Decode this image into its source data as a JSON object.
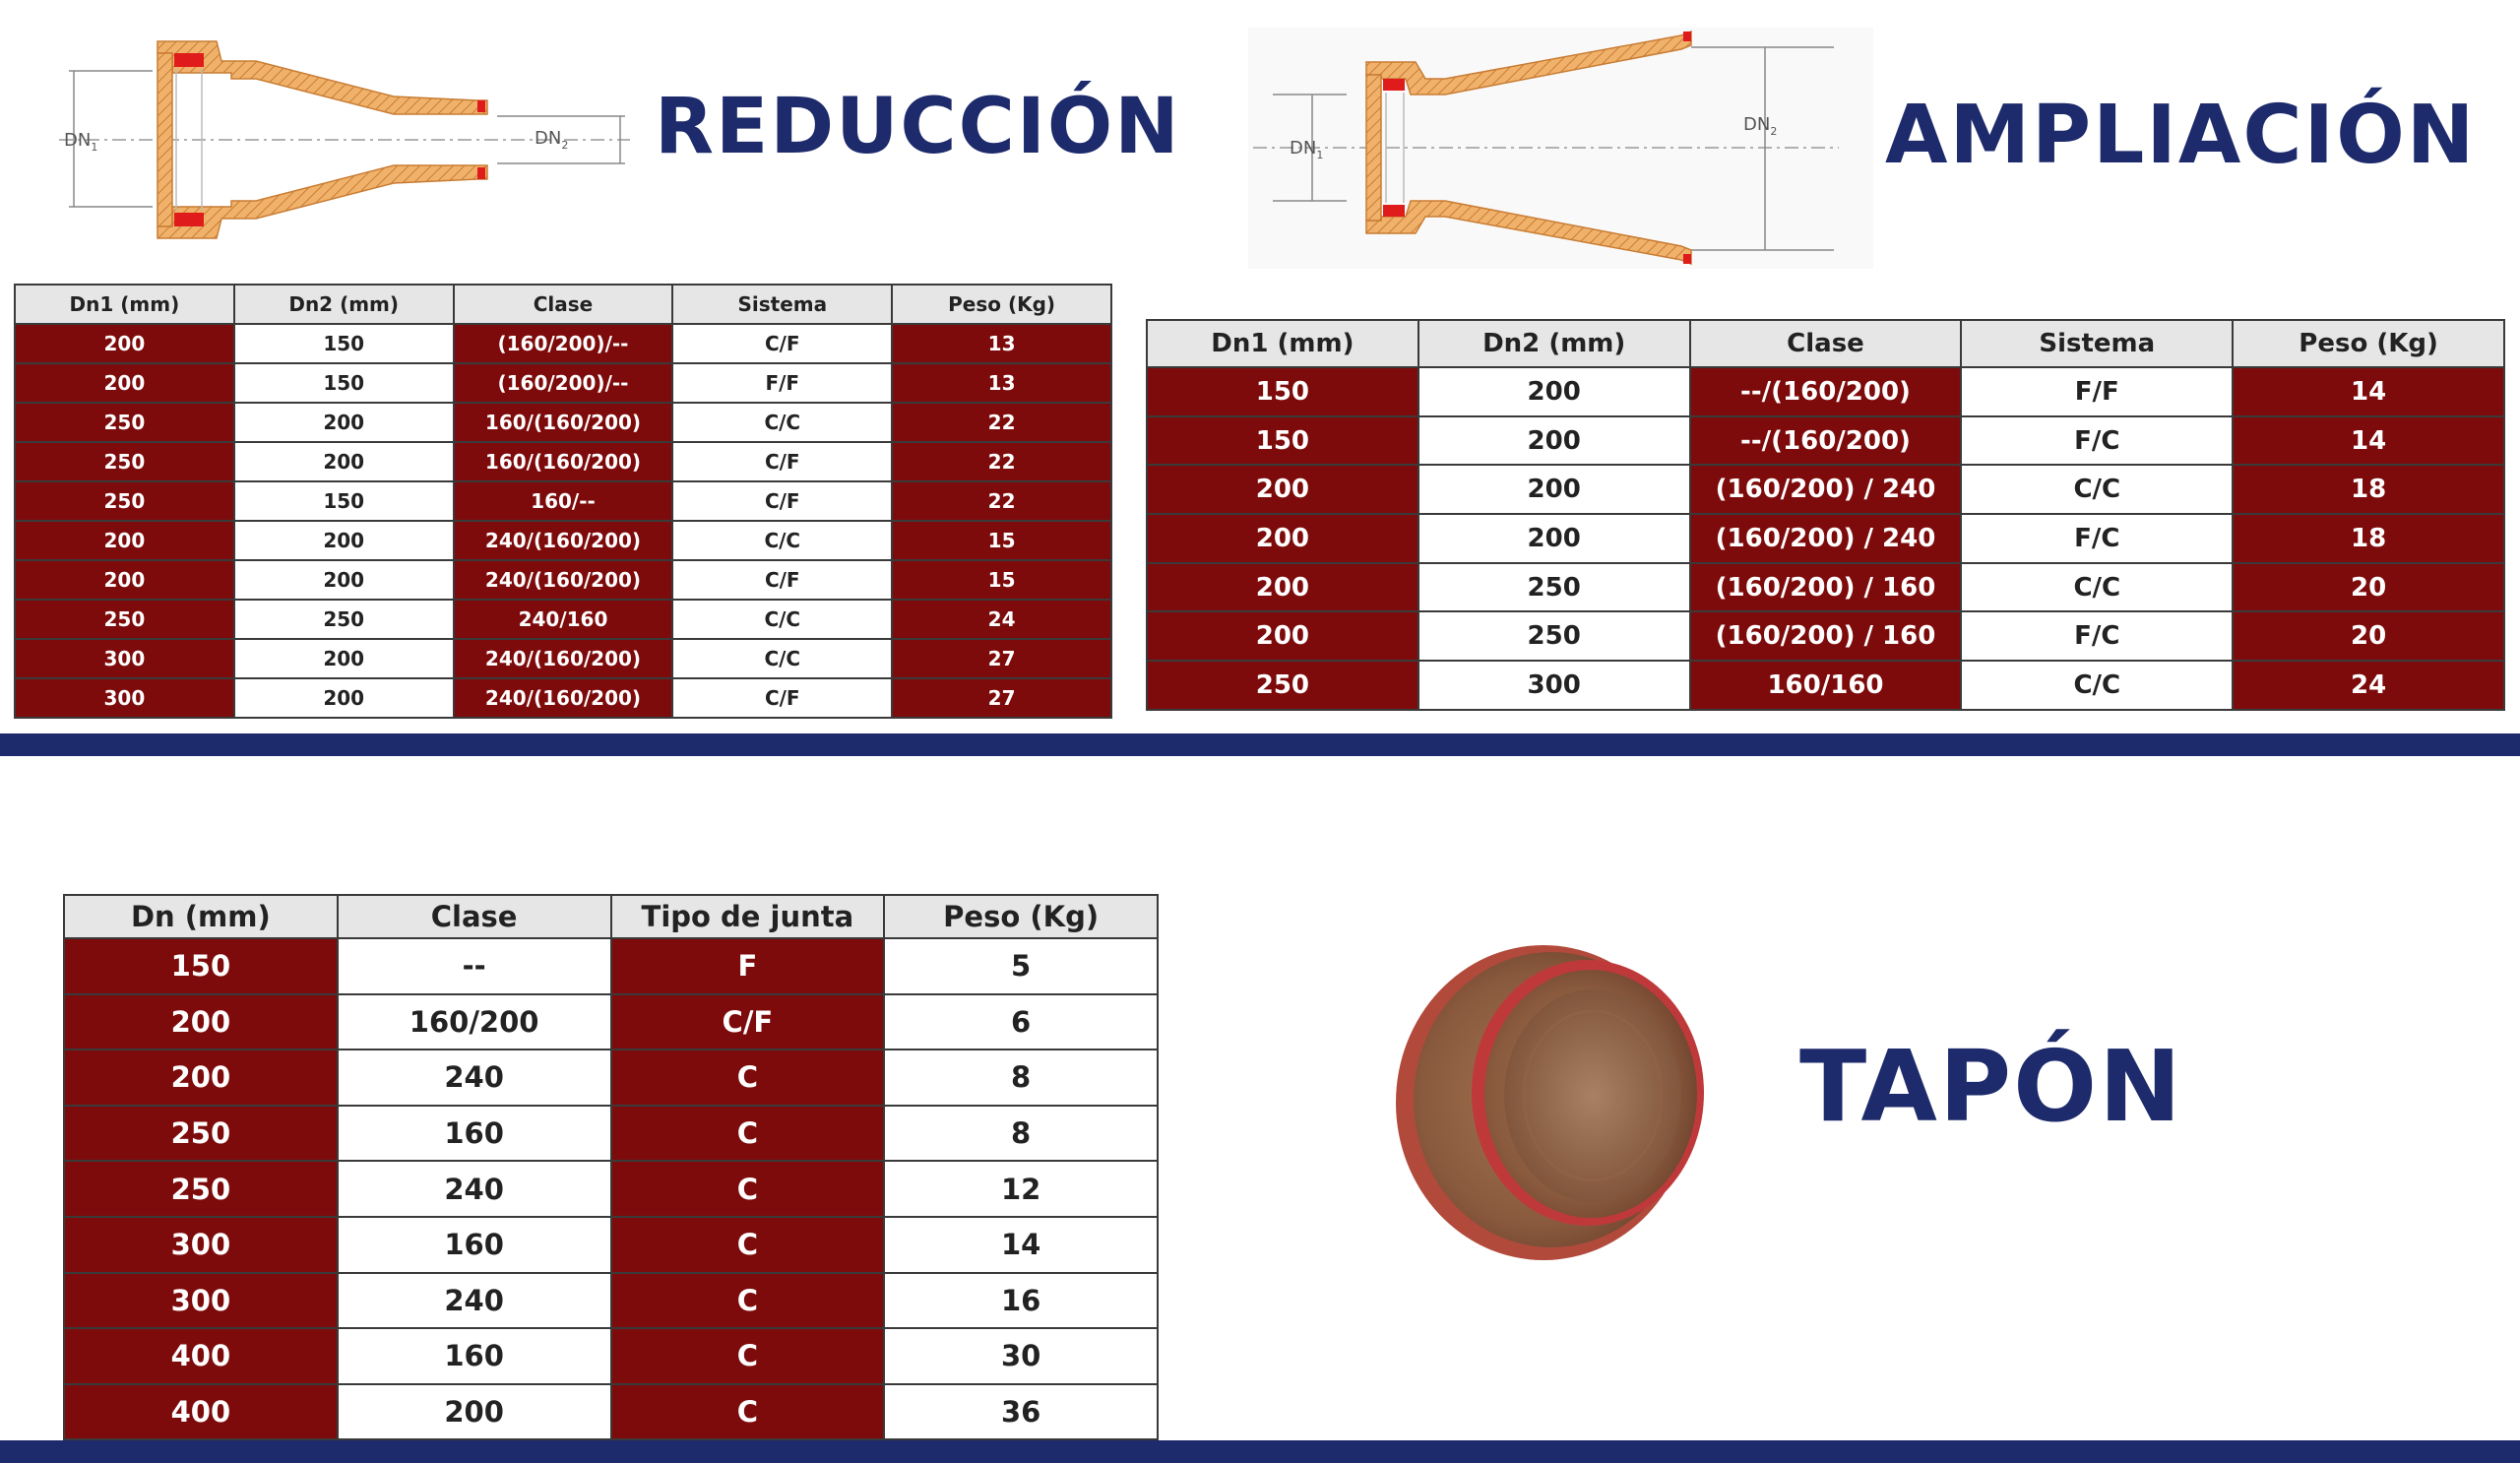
{
  "reduccion": {
    "title": "REDUCCIÓN",
    "label_dn1": "DN",
    "label_dn1_sub": "1",
    "label_dn2": "DN",
    "label_dn2_sub": "2",
    "headers": [
      "Dn1 (mm)",
      "Dn2 (mm)",
      "Clase",
      "Sistema",
      "Peso (Kg)"
    ],
    "rows": [
      [
        "200",
        "150",
        "(160/200)/--",
        "C/F",
        "13"
      ],
      [
        "200",
        "150",
        "(160/200)/--",
        "F/F",
        "13"
      ],
      [
        "250",
        "200",
        "160/(160/200)",
        "C/C",
        "22"
      ],
      [
        "250",
        "200",
        "160/(160/200)",
        "C/F",
        "22"
      ],
      [
        "250",
        "150",
        "160/--",
        "C/F",
        "22"
      ],
      [
        "200",
        "200",
        "240/(160/200)",
        "C/C",
        "15"
      ],
      [
        "200",
        "200",
        "240/(160/200)",
        "C/F",
        "15"
      ],
      [
        "250",
        "250",
        "240/160",
        "C/C",
        "24"
      ],
      [
        "300",
        "200",
        "240/(160/200)",
        "C/C",
        "27"
      ],
      [
        "300",
        "200",
        "240/(160/200)",
        "C/F",
        "27"
      ]
    ]
  },
  "ampliacion": {
    "title": "AMPLIACIÓN",
    "label_dn1": "DN",
    "label_dn1_sub": "1",
    "label_dn2": "DN",
    "label_dn2_sub": "2",
    "headers": [
      "Dn1 (mm)",
      "Dn2 (mm)",
      "Clase",
      "Sistema",
      "Peso (Kg)"
    ],
    "rows": [
      [
        "150",
        "200",
        "--/(160/200)",
        "F/F",
        "14"
      ],
      [
        "150",
        "200",
        "--/(160/200)",
        "F/C",
        "14"
      ],
      [
        "200",
        "200",
        "(160/200) / 240",
        "C/C",
        "18"
      ],
      [
        "200",
        "200",
        "(160/200) / 240",
        "F/C",
        "18"
      ],
      [
        "200",
        "250",
        "(160/200) / 160",
        "C/C",
        "20"
      ],
      [
        "200",
        "250",
        "(160/200) / 160",
        "F/C",
        "20"
      ],
      [
        "250",
        "300",
        "160/160",
        "C/C",
        "24"
      ]
    ]
  },
  "tapon": {
    "title": "TAPÓN",
    "headers": [
      "Dn (mm)",
      "Clase",
      "Tipo de junta",
      "Peso (Kg)"
    ],
    "rows": [
      [
        "150",
        "--",
        "F",
        "5"
      ],
      [
        "200",
        "160/200",
        "C/F",
        "6"
      ],
      [
        "200",
        "240",
        "C",
        "8"
      ],
      [
        "250",
        "160",
        "C",
        "8"
      ],
      [
        "250",
        "240",
        "C",
        "12"
      ],
      [
        "300",
        "160",
        "C",
        "14"
      ],
      [
        "300",
        "240",
        "C",
        "16"
      ],
      [
        "400",
        "160",
        "C",
        "30"
      ],
      [
        "400",
        "200",
        "C",
        "36"
      ]
    ]
  },
  "colors": {
    "accent_red": "#7e0b0b",
    "brand_navy": "#1d2a6b",
    "pipe_orange": "#e8a35a",
    "gasket_red": "#e01b1b"
  }
}
